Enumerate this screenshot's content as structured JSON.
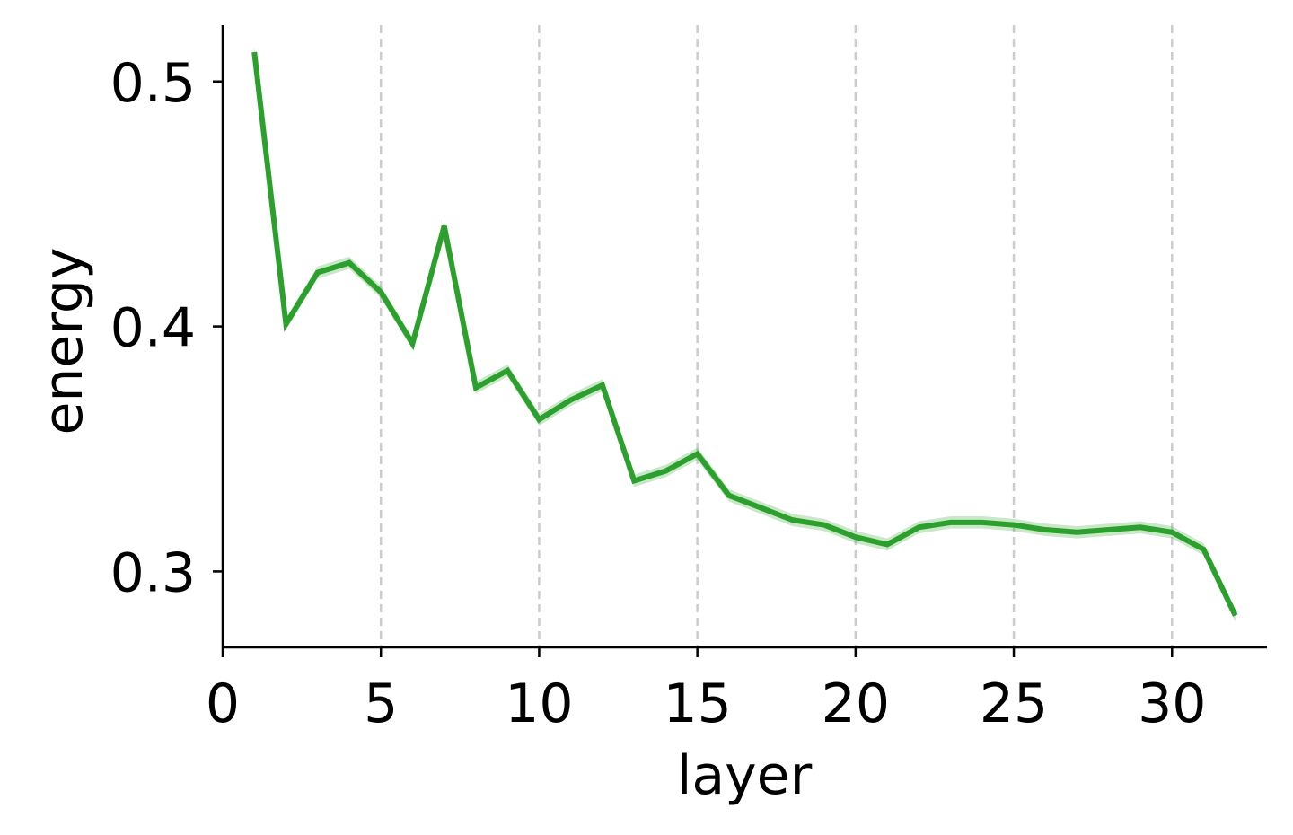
{
  "chart_data": {
    "type": "line",
    "title": "",
    "xlabel": "layer",
    "ylabel": "energy",
    "xlim": [
      0,
      33
    ],
    "ylim": [
      0.269,
      0.523
    ],
    "xticks": [
      0,
      5,
      10,
      15,
      20,
      25,
      30
    ],
    "yticks": [
      0.3,
      0.4,
      0.5
    ],
    "xtick_labels": [
      "0",
      "5",
      "10",
      "15",
      "20",
      "25",
      "30"
    ],
    "ytick_labels": [
      "0.3",
      "0.4",
      "0.5"
    ],
    "grid": "vertical dashed at x ticks 5-30",
    "color": "#2ca02c",
    "series": [
      {
        "x": [
          1,
          2,
          3,
          4,
          5,
          6,
          7,
          8,
          9,
          10,
          11,
          12,
          13,
          14,
          15,
          16,
          17,
          18,
          19,
          20,
          21,
          22,
          23,
          24,
          25,
          26,
          27,
          28,
          29,
          30,
          31,
          32
        ],
        "values": [
          0.512,
          0.401,
          0.422,
          0.426,
          0.414,
          0.393,
          0.441,
          0.375,
          0.382,
          0.362,
          0.37,
          0.376,
          0.337,
          0.341,
          0.348,
          0.331,
          0.326,
          0.321,
          0.319,
          0.314,
          0.311,
          0.318,
          0.32,
          0.32,
          0.319,
          0.317,
          0.316,
          0.317,
          0.318,
          0.316,
          0.309,
          0.282
        ]
      }
    ]
  }
}
